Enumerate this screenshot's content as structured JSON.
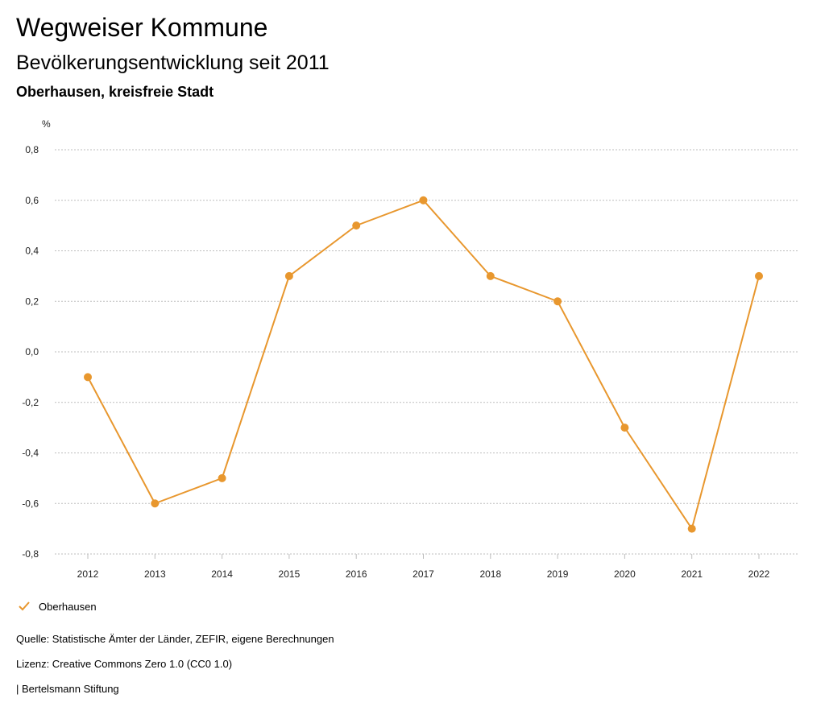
{
  "header": {
    "title": "Wegweiser Kommune",
    "subtitle": "Bevölkerungsentwicklung seit 2011",
    "region": "Oberhausen, kreisfreie Stadt"
  },
  "chart_data": {
    "type": "line",
    "unit_label": "%",
    "categories": [
      "2012",
      "2013",
      "2014",
      "2015",
      "2016",
      "2017",
      "2018",
      "2019",
      "2020",
      "2021",
      "2022"
    ],
    "series": [
      {
        "name": "Oberhausen",
        "color": "#E8972E",
        "values": [
          -0.1,
          -0.6,
          -0.5,
          0.3,
          0.5,
          0.6,
          0.3,
          0.2,
          -0.3,
          -0.7,
          0.3
        ]
      }
    ],
    "yticks": [
      0.8,
      0.6,
      0.4,
      0.2,
      0.0,
      -0.2,
      -0.4,
      -0.6,
      -0.8
    ],
    "ytick_labels": [
      "0,8",
      "0,6",
      "0,4",
      "0,2",
      "0,0",
      "-0,2",
      "-0,4",
      "-0,6",
      "-0,8"
    ],
    "ylim": [
      -0.8,
      0.8
    ],
    "grid": true,
    "legend_position": "bottom-left"
  },
  "legend": {
    "label": "Oberhausen",
    "color": "#E8972E"
  },
  "footer": {
    "source": "Quelle: Statistische Ämter der Länder, ZEFIR, eigene Berechnungen",
    "license": "Lizenz: Creative Commons Zero 1.0 (CC0 1.0)",
    "publisher": "| Bertelsmann Stiftung"
  }
}
